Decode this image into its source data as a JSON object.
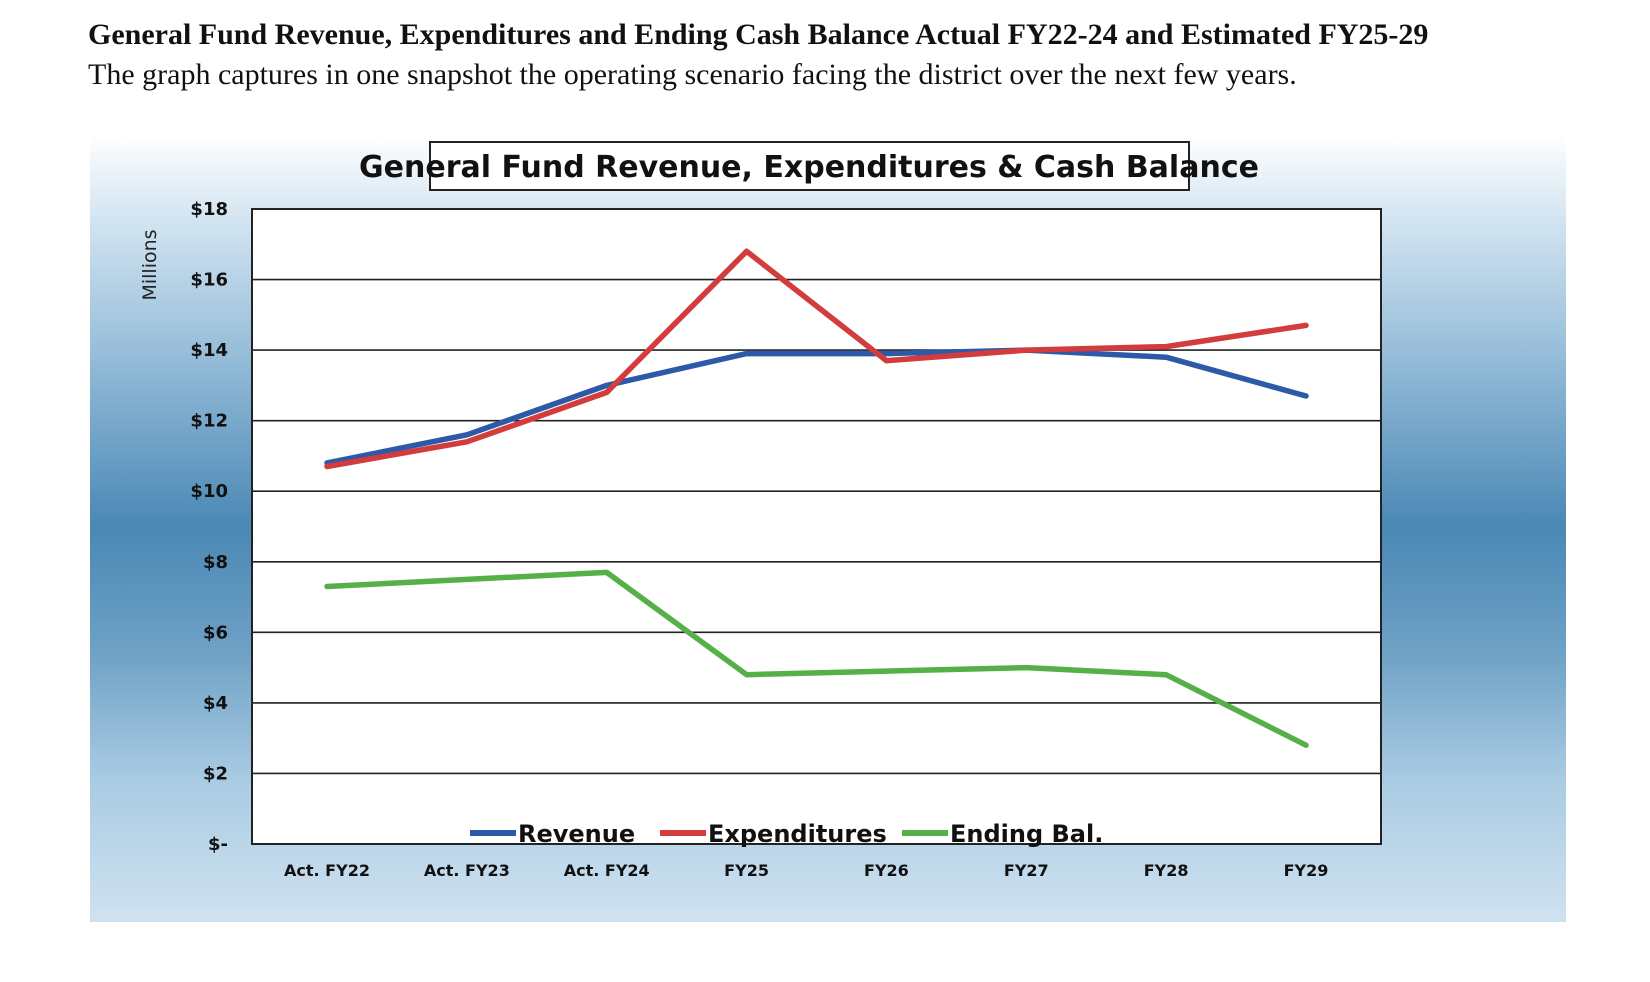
{
  "document": {
    "heading": "General Fund Revenue, Expenditures and Ending Cash Balance Actual FY22-24 and Estimated FY25-29",
    "subheading": "The graph captures in one snapshot the operating scenario facing the district over the next few years."
  },
  "chart_data": {
    "type": "line",
    "title": "General Fund Revenue, Expenditures & Cash Balance",
    "ylabel": "Millions",
    "xlabel": "",
    "categories": [
      "Act. FY22",
      "Act. FY23",
      "Act.  FY24",
      "FY25",
      "FY26",
      "FY27",
      "FY28",
      "FY29"
    ],
    "ylim": [
      0,
      18
    ],
    "yticks": [
      0,
      2,
      4,
      6,
      8,
      10,
      12,
      14,
      16,
      18
    ],
    "ytick_labels": [
      "$-",
      "$2",
      "$4",
      "$6",
      "$8",
      "$10",
      "$12",
      "$14",
      "$16",
      "$18"
    ],
    "grid": true,
    "legend_position": "bottom",
    "series": [
      {
        "name": "Revenue",
        "color": "#2d5aa8",
        "values": [
          10.8,
          11.6,
          13.0,
          13.9,
          13.9,
          14.0,
          13.8,
          12.7
        ]
      },
      {
        "name": "Expenditures",
        "color": "#d23c3c",
        "values": [
          10.7,
          11.4,
          12.8,
          16.8,
          13.7,
          14.0,
          14.1,
          14.7
        ]
      },
      {
        "name": "Ending Bal.",
        "color": "#55b047",
        "values": [
          7.3,
          7.5,
          7.7,
          4.8,
          4.9,
          5.0,
          4.8,
          2.8
        ]
      }
    ]
  }
}
